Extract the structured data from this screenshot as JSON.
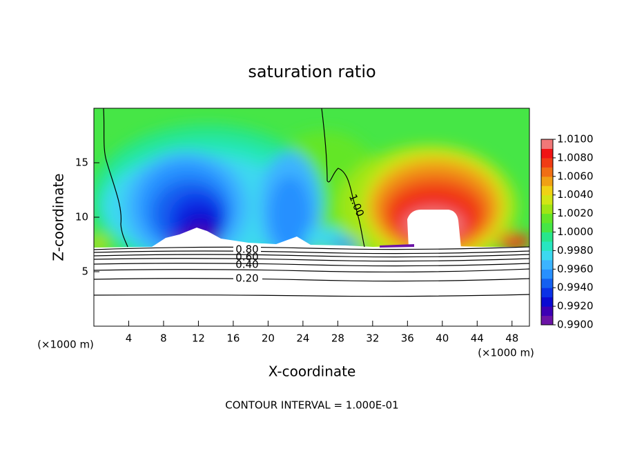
{
  "chart_data": {
    "type": "contour",
    "title": "saturation ratio",
    "x_label": "X-coordinate",
    "y_label": "Z-coordinate",
    "x_unit": "(×1000 m)",
    "y_unit": "(×1000 m)",
    "annotation": "CONTOUR INTERVAL = 1.000E-01",
    "xlim": [
      0,
      50
    ],
    "ylim": [
      0,
      20
    ],
    "xticks": [
      4,
      8,
      12,
      16,
      20,
      24,
      28,
      32,
      36,
      40,
      44,
      48
    ],
    "yticks": [
      5,
      10,
      15
    ],
    "clim": [
      0.99,
      1.01
    ],
    "cticks": [
      {
        "value": 0.99,
        "label": "0.9900"
      },
      {
        "value": 0.992,
        "label": "0.9920"
      },
      {
        "value": 0.994,
        "label": "0.9940"
      },
      {
        "value": 0.996,
        "label": "0.9960"
      },
      {
        "value": 0.998,
        "label": "0.9980"
      },
      {
        "value": 1.0,
        "label": "1.0000"
      },
      {
        "value": 1.002,
        "label": "1.0020"
      },
      {
        "value": 1.004,
        "label": "1.0040"
      },
      {
        "value": 1.006,
        "label": "1.0060"
      },
      {
        "value": 1.008,
        "label": "1.0080"
      },
      {
        "value": 1.01,
        "label": "1.0100"
      }
    ],
    "colors": [
      "#6b14a6",
      "#3c00b4",
      "#0a0ad2",
      "#0a32e6",
      "#1460f0",
      "#2890ff",
      "#3cb4ff",
      "#3cd8f0",
      "#28e6c0",
      "#28e68c",
      "#46e646",
      "#64e628",
      "#a0e614",
      "#d2e614",
      "#f0d214",
      "#f0a014",
      "#f06e14",
      "#f03c14",
      "#f01414",
      "#f07878"
    ],
    "contours": [
      {
        "value": 1,
        "label": "1.00"
      },
      {
        "value": 0.8,
        "label": "0.80"
      },
      {
        "value": 0.6,
        "label": "0.60"
      },
      {
        "value": 0.4,
        "label": "0.40"
      },
      {
        "value": 0.2,
        "label": "0.20"
      }
    ]
  }
}
